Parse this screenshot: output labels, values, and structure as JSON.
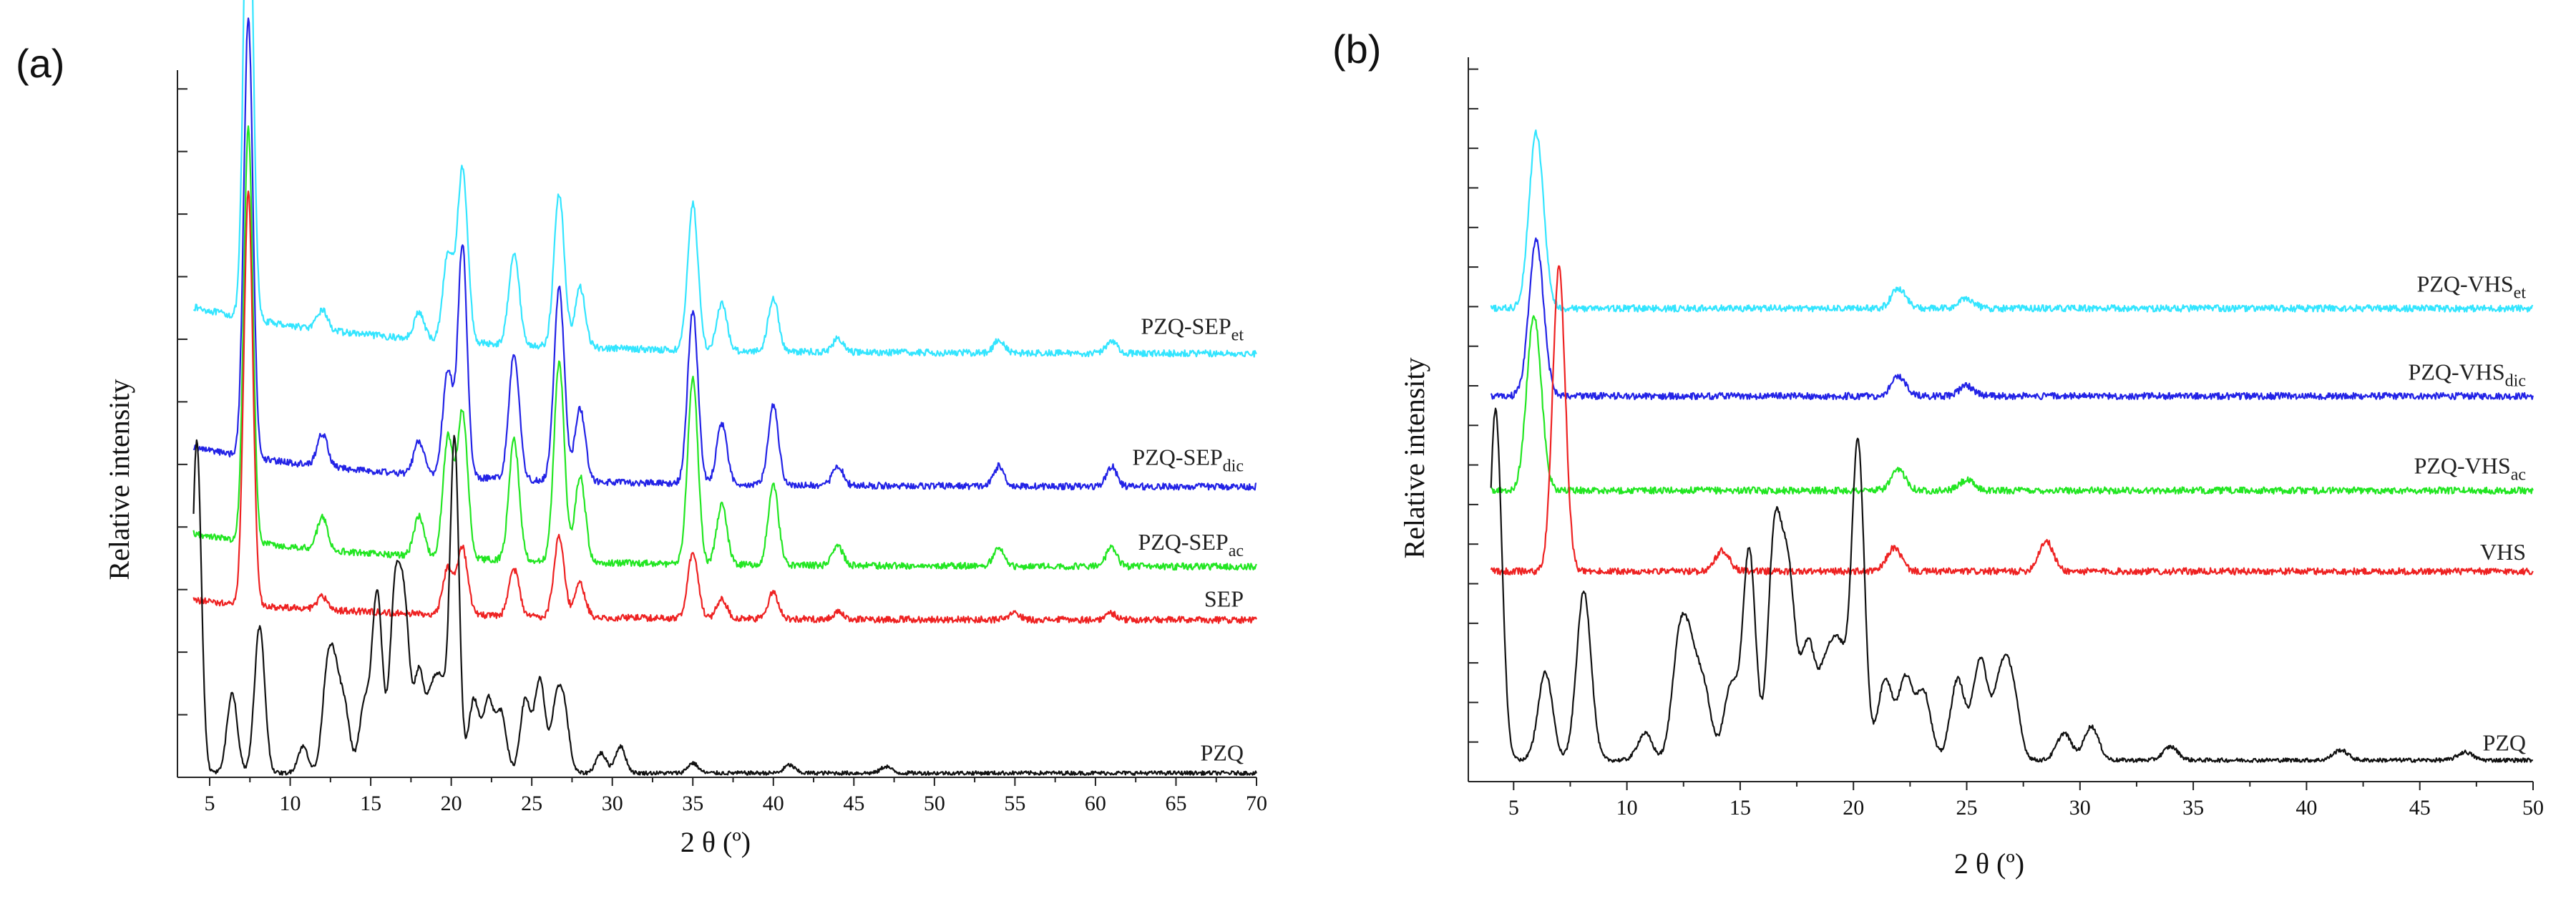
{
  "chart_data": [
    {
      "panel": "(a)",
      "type": "line",
      "title": "",
      "xlabel": "2 θ (º)",
      "ylabel": "Relative intensity",
      "xlim": [
        3,
        70
      ],
      "x_ticks": [
        5,
        10,
        15,
        20,
        25,
        30,
        35,
        40,
        45,
        50,
        55,
        60,
        65,
        70
      ],
      "y_tick_count": 11,
      "series": [
        {
          "name": "PZQ-SEP",
          "sub": "et",
          "color": "#33e5ff",
          "baseline": 0.63,
          "decay": 0.07,
          "peaks": [
            [
              7.4,
              0.78
            ],
            [
              12,
              0.03
            ],
            [
              18,
              0.04
            ],
            [
              19.8,
              0.13
            ],
            [
              20.7,
              0.26
            ],
            [
              23.9,
              0.14
            ],
            [
              26.7,
              0.23
            ],
            [
              28,
              0.09
            ],
            [
              35,
              0.22
            ],
            [
              36.8,
              0.07
            ],
            [
              40,
              0.08
            ],
            [
              44,
              0.02
            ],
            [
              54,
              0.02
            ],
            [
              61,
              0.02
            ]
          ]
        },
        {
          "name": "PZQ-SEP",
          "sub": "dic",
          "color": "#2323e6",
          "baseline": 0.43,
          "decay": 0.06,
          "peaks": [
            [
              7.4,
              0.66
            ],
            [
              12,
              0.05
            ],
            [
              18,
              0.05
            ],
            [
              19.8,
              0.16
            ],
            [
              20.7,
              0.35
            ],
            [
              23.9,
              0.19
            ],
            [
              26.7,
              0.29
            ],
            [
              28,
              0.11
            ],
            [
              35,
              0.26
            ],
            [
              36.8,
              0.09
            ],
            [
              40,
              0.12
            ],
            [
              44,
              0.03
            ],
            [
              54,
              0.03
            ],
            [
              61,
              0.03
            ]
          ]
        },
        {
          "name": "PZQ-SEP",
          "sub": "ac",
          "color": "#22e622",
          "baseline": 0.31,
          "decay": 0.05,
          "peaks": [
            [
              7.4,
              0.62
            ],
            [
              12,
              0.05
            ],
            [
              18,
              0.06
            ],
            [
              19.8,
              0.18
            ],
            [
              20.7,
              0.22
            ],
            [
              23.9,
              0.18
            ],
            [
              26.7,
              0.3
            ],
            [
              28,
              0.13
            ],
            [
              35,
              0.28
            ],
            [
              36.8,
              0.09
            ],
            [
              40,
              0.12
            ],
            [
              44,
              0.03
            ],
            [
              54,
              0.03
            ],
            [
              61,
              0.03
            ]
          ]
        },
        {
          "name": "SEP",
          "sub": "",
          "color": "#ee2222",
          "baseline": 0.23,
          "decay": 0.03,
          "peaks": [
            [
              7.4,
              0.62
            ],
            [
              12,
              0.02
            ],
            [
              19.8,
              0.07
            ],
            [
              20.7,
              0.1
            ],
            [
              23.9,
              0.07
            ],
            [
              26.7,
              0.12
            ],
            [
              28,
              0.05
            ],
            [
              35,
              0.1
            ],
            [
              36.8,
              0.03
            ],
            [
              40,
              0.04
            ],
            [
              44,
              0.01
            ],
            [
              55,
              0.01
            ],
            [
              61,
              0.01
            ]
          ]
        },
        {
          "name": "PZQ",
          "sub": "",
          "color": "#111111",
          "baseline": 0.0,
          "decay": 0.0,
          "peaks": [
            [
              4.2,
              0.5
            ],
            [
              6.4,
              0.12
            ],
            [
              8.1,
              0.22
            ],
            [
              10.8,
              0.04
            ],
            [
              12.3,
              0.14
            ],
            [
              12.8,
              0.12
            ],
            [
              13.4,
              0.09
            ],
            [
              14.6,
              0.1
            ],
            [
              15.4,
              0.27
            ],
            [
              16.5,
              0.26
            ],
            [
              17.1,
              0.23
            ],
            [
              18,
              0.15
            ],
            [
              18.8,
              0.11
            ],
            [
              19.4,
              0.12
            ],
            [
              20.2,
              0.5
            ],
            [
              21.4,
              0.11
            ],
            [
              22.3,
              0.11
            ],
            [
              23.1,
              0.09
            ],
            [
              24.6,
              0.11
            ],
            [
              25.5,
              0.14
            ],
            [
              26.5,
              0.09
            ],
            [
              27,
              0.09
            ],
            [
              29.3,
              0.03
            ],
            [
              30.5,
              0.04
            ],
            [
              35,
              0.015
            ],
            [
              41,
              0.012
            ],
            [
              47,
              0.01
            ]
          ]
        }
      ]
    },
    {
      "panel": "(b)",
      "type": "line",
      "title": "",
      "xlabel": "2 θ (º)",
      "ylabel": "Relative intensity",
      "xlim": [
        3,
        50
      ],
      "x_ticks": [
        5,
        10,
        15,
        20,
        25,
        30,
        35,
        40,
        45,
        50
      ],
      "y_tick_count": 18,
      "series": [
        {
          "name": "PZQ-VHS",
          "sub": "et",
          "color": "#33e5ff",
          "baseline": 0.67,
          "decay": 0.0,
          "peaks": [
            [
              6.0,
              0.26
            ],
            [
              22,
              0.03
            ],
            [
              25,
              0.015
            ]
          ]
        },
        {
          "name": "PZQ-VHS",
          "sub": "dic",
          "color": "#2323e6",
          "baseline": 0.54,
          "decay": 0.0,
          "peaks": [
            [
              6.0,
              0.23
            ],
            [
              22,
              0.03
            ],
            [
              25,
              0.015
            ]
          ]
        },
        {
          "name": "PZQ-VHS",
          "sub": "ac",
          "color": "#22e622",
          "baseline": 0.4,
          "decay": 0.0,
          "peaks": [
            [
              5.9,
              0.26
            ],
            [
              22,
              0.03
            ],
            [
              25,
              0.015
            ]
          ]
        },
        {
          "name": "VHS",
          "sub": "",
          "color": "#ee2222",
          "baseline": 0.28,
          "decay": 0.0,
          "peaks": [
            [
              7.0,
              0.45
            ],
            [
              14.2,
              0.03
            ],
            [
              21.8,
              0.035
            ],
            [
              28.5,
              0.045
            ]
          ]
        },
        {
          "name": "PZQ",
          "sub": "",
          "color": "#111111",
          "baseline": 0.0,
          "decay": 0.0,
          "peaks": [
            [
              4.2,
              0.52
            ],
            [
              6.4,
              0.13
            ],
            [
              8.1,
              0.25
            ],
            [
              10.8,
              0.04
            ],
            [
              12.3,
              0.16
            ],
            [
              12.8,
              0.13
            ],
            [
              13.4,
              0.1
            ],
            [
              14.6,
              0.11
            ],
            [
              15.4,
              0.31
            ],
            [
              16.5,
              0.31
            ],
            [
              17.1,
              0.28
            ],
            [
              18,
              0.17
            ],
            [
              18.8,
              0.13
            ],
            [
              19.4,
              0.15
            ],
            [
              20.2,
              0.47
            ],
            [
              21.4,
              0.12
            ],
            [
              22.3,
              0.12
            ],
            [
              23.1,
              0.1
            ],
            [
              24.6,
              0.12
            ],
            [
              25.6,
              0.15
            ],
            [
              26.5,
              0.11
            ],
            [
              27,
              0.1
            ],
            [
              29.3,
              0.04
            ],
            [
              30.5,
              0.05
            ],
            [
              34,
              0.02
            ],
            [
              41.5,
              0.015
            ],
            [
              47,
              0.012
            ]
          ]
        }
      ]
    }
  ]
}
